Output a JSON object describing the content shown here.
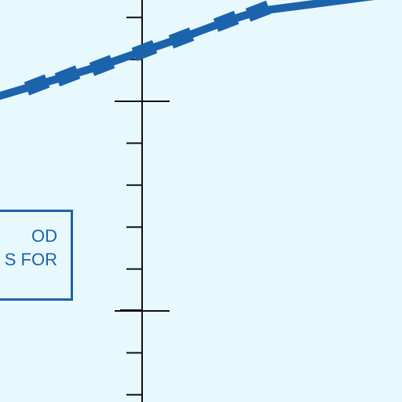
{
  "chart_data": {
    "type": "line",
    "title": "",
    "xlabel": "",
    "ylabel": "",
    "grid": false,
    "colors": {
      "background": "#e8f9fd",
      "series": "#1c63ad",
      "axis": "#111111",
      "label_border": "#1c63ad",
      "label_text": "#1c63ad"
    },
    "series": [
      {
        "x": [
          0,
          4.2,
          8.1,
          12.5,
          17.9,
          22.6,
          28.3,
          32.4
        ],
        "y": [
          7.22,
          7.55,
          7.85,
          8.2,
          8.7,
          9.12,
          9.68,
          10.02
        ]
      }
    ],
    "legend_box": {
      "lines": [
        "OD",
        "S FOR"
      ]
    }
  }
}
